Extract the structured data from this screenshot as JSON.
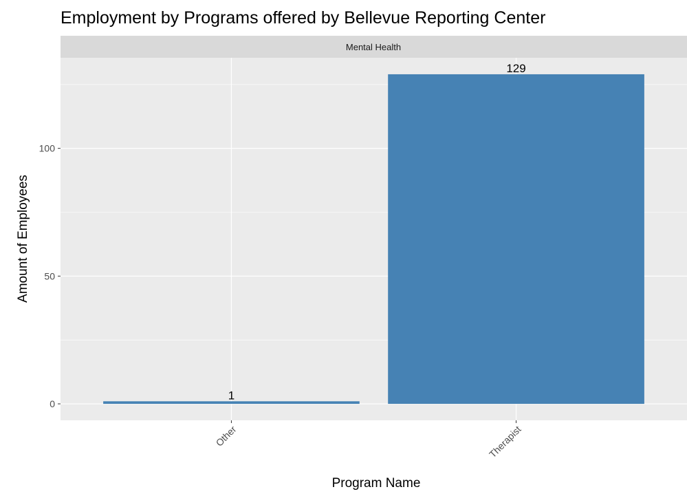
{
  "chart_data": {
    "type": "bar",
    "title": "Employment by Programs offered by Bellevue Reporting Center",
    "facet": "Mental Health",
    "xlabel": "Program Name",
    "ylabel": "Amount of Employees",
    "categories": [
      "Other",
      "Therapist"
    ],
    "values": [
      1,
      129
    ],
    "data_labels": [
      "1",
      "129"
    ],
    "y_ticks": [
      0,
      50,
      100
    ],
    "y_tick_labels": [
      "0",
      "50",
      "100"
    ],
    "ylim": [
      -6.45,
      135.45
    ],
    "grid": true,
    "legend": "none",
    "colors": {
      "bar": "#4682B4",
      "panel_background": "#EBEBEB",
      "grid_major": "#FFFFFF",
      "strip_background": "#D9D9D9"
    }
  }
}
